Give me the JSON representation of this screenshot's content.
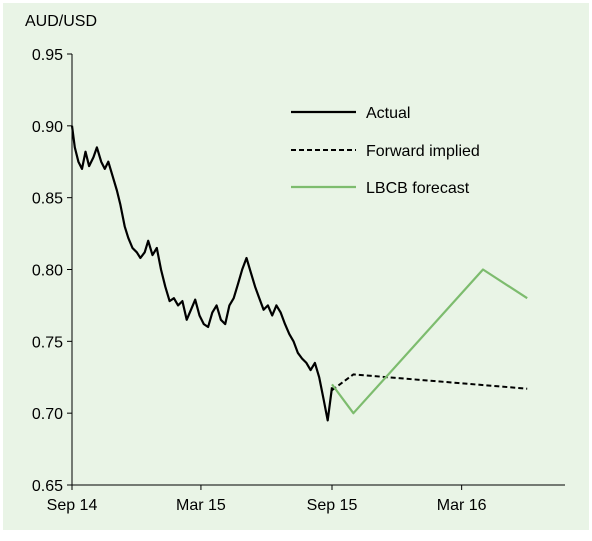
{
  "chart_data": {
    "type": "line",
    "ylabel": "AUD/USD",
    "ylim": [
      0.65,
      0.95
    ],
    "yticks": [
      "0.95",
      "0.90",
      "0.85",
      "0.80",
      "0.75",
      "0.70",
      "0.65"
    ],
    "xticks": [
      "Sep 14",
      "Mar 15",
      "Sep 15",
      "Mar 16"
    ],
    "grid": false,
    "legend_position": "top-right",
    "background_color": "#e9f4e6",
    "series": [
      {
        "name": "Actual",
        "color": "#000000",
        "style": "solid",
        "x": [
          "2014-09-01",
          "2014-09-05",
          "2014-09-10",
          "2014-09-15",
          "2014-09-20",
          "2014-09-25",
          "2014-10-01",
          "2014-10-06",
          "2014-10-12",
          "2014-10-17",
          "2014-10-22",
          "2014-10-28",
          "2014-11-03",
          "2014-11-08",
          "2014-11-14",
          "2014-11-19",
          "2014-11-25",
          "2014-12-01",
          "2014-12-06",
          "2014-12-12",
          "2014-12-17",
          "2014-12-23",
          "2014-12-29",
          "2015-01-04",
          "2015-01-10",
          "2015-01-16",
          "2015-01-22",
          "2015-01-28",
          "2015-02-03",
          "2015-02-09",
          "2015-02-15",
          "2015-02-21",
          "2015-02-27",
          "2015-03-05",
          "2015-03-11",
          "2015-03-17",
          "2015-03-23",
          "2015-03-29",
          "2015-04-04",
          "2015-04-10",
          "2015-04-16",
          "2015-04-22",
          "2015-04-28",
          "2015-05-04",
          "2015-05-10",
          "2015-05-16",
          "2015-05-22",
          "2015-05-28",
          "2015-06-03",
          "2015-06-09",
          "2015-06-15",
          "2015-06-21",
          "2015-06-27",
          "2015-07-03",
          "2015-07-09",
          "2015-07-15",
          "2015-07-21",
          "2015-07-27",
          "2015-08-02",
          "2015-08-08",
          "2015-08-14",
          "2015-08-20",
          "2015-08-26",
          "2015-09-01"
        ],
        "y": [
          0.9,
          0.885,
          0.875,
          0.87,
          0.882,
          0.872,
          0.878,
          0.885,
          0.875,
          0.87,
          0.875,
          0.865,
          0.855,
          0.845,
          0.83,
          0.822,
          0.815,
          0.812,
          0.808,
          0.812,
          0.82,
          0.81,
          0.815,
          0.8,
          0.788,
          0.778,
          0.78,
          0.775,
          0.778,
          0.765,
          0.772,
          0.779,
          0.768,
          0.762,
          0.76,
          0.77,
          0.775,
          0.765,
          0.762,
          0.775,
          0.78,
          0.79,
          0.8,
          0.808,
          0.798,
          0.788,
          0.78,
          0.772,
          0.775,
          0.768,
          0.775,
          0.77,
          0.762,
          0.755,
          0.75,
          0.742,
          0.738,
          0.735,
          0.73,
          0.735,
          0.725,
          0.71,
          0.695,
          0.718
        ]
      },
      {
        "name": "Forward implied",
        "color": "#000000",
        "style": "dashed",
        "x": [
          "2015-09-01",
          "2015-10-01",
          "2016-06-01"
        ],
        "y": [
          0.716,
          0.727,
          0.717
        ]
      },
      {
        "name": "LBCB forecast",
        "color": "#7dbc6e",
        "style": "solid",
        "x": [
          "2015-09-01",
          "2015-10-01",
          "2016-03-31",
          "2016-06-01"
        ],
        "y": [
          0.72,
          0.7,
          0.8,
          0.78
        ]
      }
    ]
  }
}
